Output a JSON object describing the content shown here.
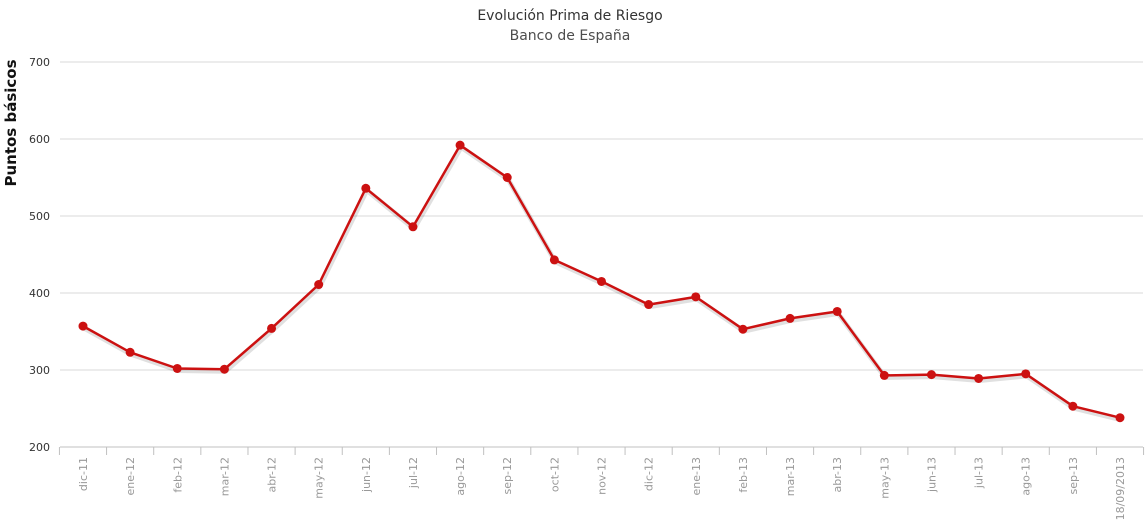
{
  "chart_data": {
    "type": "line",
    "title": "Evolución Prima de Riesgo",
    "subtitle": "Banco de España",
    "ylabel": "Puntos básicos",
    "xlabel": "",
    "ylim": [
      200,
      700
    ],
    "yticks": [
      200,
      300,
      400,
      500,
      600,
      700
    ],
    "grid": true,
    "categories": [
      "dic-11",
      "ene-12",
      "feb-12",
      "mar-12",
      "abr-12",
      "may-12",
      "jun-12",
      "jul-12",
      "ago-12",
      "sep-12",
      "oct-12",
      "nov-12",
      "dic-12",
      "ene-13",
      "feb-13",
      "mar-13",
      "abr-13",
      "may-13",
      "jun-13",
      "jul-13",
      "ago-13",
      "sep-13",
      "18/09/2013"
    ],
    "series": [
      {
        "color": "#cc1111",
        "values": [
          357,
          323,
          302,
          301,
          354,
          411,
          536,
          486,
          592,
          550,
          443,
          415,
          385,
          395,
          353,
          367,
          376,
          293,
          294,
          289,
          295,
          253,
          238
        ]
      }
    ]
  }
}
